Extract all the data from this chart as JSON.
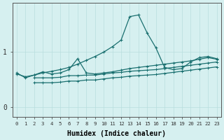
{
  "xlabel": "Humidex (Indice chaleur)",
  "bg_color": "#d6f0f0",
  "line_color": "#1a7070",
  "grid_color": "#b8dede",
  "x_ticks": [
    0,
    1,
    2,
    3,
    4,
    5,
    6,
    7,
    8,
    9,
    10,
    11,
    12,
    13,
    14,
    15,
    16,
    17,
    18,
    19,
    20,
    21,
    22,
    23
  ],
  "y_ticks": [
    0,
    1
  ],
  "ylim": [
    -0.18,
    1.9
  ],
  "xlim": [
    -0.5,
    23.5
  ],
  "line1_x": [
    0,
    1,
    2,
    3,
    4,
    5,
    6,
    7,
    8,
    9,
    10,
    11,
    12,
    13,
    14,
    15,
    16,
    17,
    18,
    19,
    20,
    21,
    22,
    23
  ],
  "line1_y": [
    0.62,
    0.53,
    0.58,
    0.62,
    0.65,
    0.68,
    0.72,
    0.78,
    0.85,
    0.92,
    1.0,
    1.1,
    1.22,
    1.65,
    1.68,
    1.35,
    1.08,
    0.72,
    0.68,
    0.7,
    0.82,
    0.9,
    0.92,
    0.88
  ],
  "line2_x": [
    0,
    1,
    2,
    3,
    4,
    5,
    6,
    7,
    8,
    9,
    10,
    11,
    12,
    13,
    14,
    15,
    16,
    17,
    18,
    19,
    20,
    21,
    22,
    23
  ],
  "line2_y": [
    0.6,
    0.55,
    0.58,
    0.64,
    0.6,
    0.62,
    0.68,
    0.88,
    0.62,
    0.6,
    0.62,
    0.64,
    0.67,
    0.7,
    0.72,
    0.74,
    0.76,
    0.78,
    0.8,
    0.82,
    0.84,
    0.87,
    0.9,
    0.87
  ],
  "line3_x": [
    2,
    3,
    4,
    5,
    6,
    7,
    8,
    9,
    10,
    11,
    12,
    13,
    14,
    15,
    16,
    17,
    18,
    19,
    20,
    21,
    22,
    23
  ],
  "line3_y": [
    0.53,
    0.53,
    0.53,
    0.54,
    0.57,
    0.57,
    0.58,
    0.58,
    0.6,
    0.62,
    0.63,
    0.65,
    0.66,
    0.67,
    0.68,
    0.7,
    0.72,
    0.74,
    0.76,
    0.78,
    0.8,
    0.82
  ],
  "line4_x": [
    2,
    3,
    4,
    5,
    6,
    7,
    8,
    9,
    10,
    11,
    12,
    13,
    14,
    15,
    16,
    17,
    18,
    19,
    20,
    21,
    22,
    23
  ],
  "line4_y": [
    0.44,
    0.44,
    0.44,
    0.45,
    0.47,
    0.47,
    0.49,
    0.49,
    0.51,
    0.53,
    0.54,
    0.56,
    0.57,
    0.58,
    0.59,
    0.61,
    0.63,
    0.65,
    0.67,
    0.69,
    0.71,
    0.73
  ]
}
